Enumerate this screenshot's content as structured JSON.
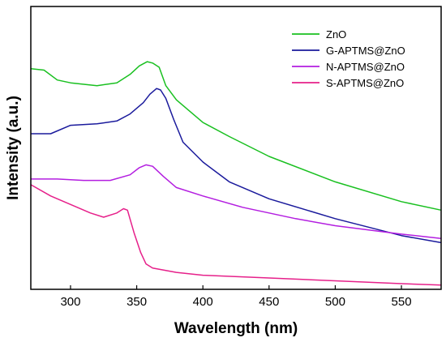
{
  "chart_data": {
    "type": "line",
    "title": "",
    "xlabel": "Wavelength (nm)",
    "ylabel": "Intensity (a.u.)",
    "xlim": [
      270,
      580
    ],
    "ylim": [
      0,
      1
    ],
    "x_ticks": [
      300,
      350,
      400,
      450,
      500,
      550
    ],
    "y_ticks_shown": false,
    "grid": false,
    "legend_position": "top-right",
    "series": [
      {
        "name": "ZnO",
        "color": "#19c020",
        "points": [
          [
            270,
            0.78
          ],
          [
            280,
            0.775
          ],
          [
            290,
            0.74
          ],
          [
            300,
            0.73
          ],
          [
            320,
            0.72
          ],
          [
            335,
            0.73
          ],
          [
            345,
            0.76
          ],
          [
            352,
            0.79
          ],
          [
            358,
            0.805
          ],
          [
            362,
            0.8
          ],
          [
            367,
            0.785
          ],
          [
            372,
            0.72
          ],
          [
            380,
            0.67
          ],
          [
            400,
            0.59
          ],
          [
            420,
            0.54
          ],
          [
            450,
            0.47
          ],
          [
            500,
            0.38
          ],
          [
            550,
            0.31
          ],
          [
            580,
            0.28
          ]
        ]
      },
      {
        "name": "G-APTMS@ZnO",
        "color": "#1a1a9c",
        "points": [
          [
            270,
            0.55
          ],
          [
            285,
            0.55
          ],
          [
            300,
            0.58
          ],
          [
            320,
            0.585
          ],
          [
            335,
            0.595
          ],
          [
            345,
            0.62
          ],
          [
            355,
            0.66
          ],
          [
            360,
            0.69
          ],
          [
            365,
            0.71
          ],
          [
            368,
            0.705
          ],
          [
            372,
            0.675
          ],
          [
            378,
            0.6
          ],
          [
            385,
            0.52
          ],
          [
            400,
            0.45
          ],
          [
            420,
            0.38
          ],
          [
            450,
            0.32
          ],
          [
            500,
            0.25
          ],
          [
            550,
            0.19
          ],
          [
            580,
            0.165
          ]
        ]
      },
      {
        "name": "N-APTMS@ZnO",
        "color": "#b31ee0",
        "points": [
          [
            270,
            0.39
          ],
          [
            290,
            0.39
          ],
          [
            310,
            0.385
          ],
          [
            330,
            0.385
          ],
          [
            345,
            0.405
          ],
          [
            352,
            0.43
          ],
          [
            357,
            0.44
          ],
          [
            362,
            0.435
          ],
          [
            370,
            0.4
          ],
          [
            380,
            0.36
          ],
          [
            400,
            0.33
          ],
          [
            430,
            0.29
          ],
          [
            470,
            0.25
          ],
          [
            500,
            0.225
          ],
          [
            550,
            0.195
          ],
          [
            580,
            0.18
          ]
        ]
      },
      {
        "name": "S-APTMS@ZnO",
        "color": "#e6208a",
        "points": [
          [
            270,
            0.37
          ],
          [
            285,
            0.33
          ],
          [
            300,
            0.3
          ],
          [
            315,
            0.27
          ],
          [
            325,
            0.255
          ],
          [
            335,
            0.27
          ],
          [
            340,
            0.285
          ],
          [
            343,
            0.28
          ],
          [
            348,
            0.2
          ],
          [
            353,
            0.13
          ],
          [
            357,
            0.09
          ],
          [
            362,
            0.075
          ],
          [
            380,
            0.06
          ],
          [
            400,
            0.05
          ],
          [
            450,
            0.04
          ],
          [
            500,
            0.03
          ],
          [
            550,
            0.02
          ],
          [
            580,
            0.015
          ]
        ]
      }
    ]
  }
}
